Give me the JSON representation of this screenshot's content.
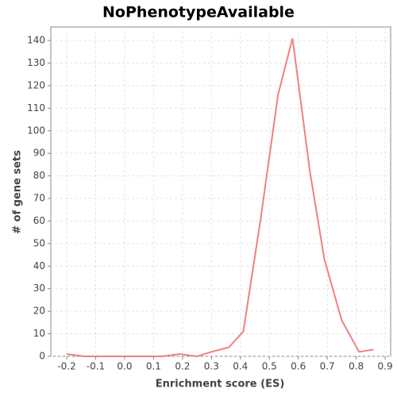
{
  "chart_data": {
    "type": "line",
    "title": "NoPhenotypeAvailable",
    "x_label": "Enrichment score (ES)",
    "y_label": "# of gene sets",
    "series": [
      {
        "color": "#f08080",
        "x": [
          -0.2,
          -0.14,
          -0.09,
          -0.03,
          0.02,
          0.08,
          0.13,
          0.19,
          0.25,
          0.3,
          0.36,
          0.41,
          0.47,
          0.53,
          0.58,
          0.64,
          0.69,
          0.75,
          0.81,
          0.86
        ],
        "values": [
          1,
          0,
          0,
          0,
          0,
          0,
          0,
          1,
          0,
          2,
          4,
          11,
          61,
          116,
          141,
          82,
          43,
          16,
          2,
          3
        ]
      }
    ],
    "xlim": [
      -0.255,
      0.919
    ],
    "ylim": [
      0,
      146
    ],
    "xticks": [
      -0.2,
      -0.1,
      {
        "value": 0,
        "label": "0.0"
      },
      0.1,
      0.2,
      0.3,
      0.4,
      0.5,
      0.6,
      0.7,
      0.8,
      0.9
    ],
    "yticks": [
      0,
      10,
      20,
      30,
      40,
      50,
      60,
      70,
      80,
      90,
      100,
      110,
      120,
      130,
      140
    ],
    "grid": true
  }
}
